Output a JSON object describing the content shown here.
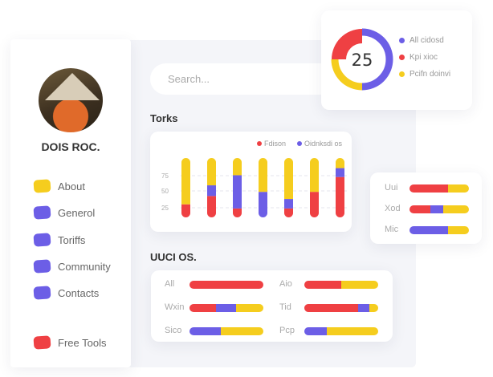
{
  "colors": {
    "red": "#ef4043",
    "purple": "#6c5ee6",
    "yellow": "#f5cd1e"
  },
  "profile": {
    "name": "DOIS ROC."
  },
  "sidebar": {
    "items": [
      {
        "label": "About",
        "color": "yellow"
      },
      {
        "label": "Generol",
        "color": "purple"
      },
      {
        "label": "Toriffs",
        "color": "purple"
      },
      {
        "label": "Community",
        "color": "purple"
      },
      {
        "label": "Contacts",
        "color": "purple"
      },
      {
        "label": "Free Tools",
        "color": "red"
      }
    ]
  },
  "search": {
    "placeholder": "Search..."
  },
  "donut": {
    "center_value": "25",
    "legend": [
      {
        "label": "All cidosd",
        "color": "purple",
        "value": 50
      },
      {
        "label": "Kpi xioc",
        "color": "red",
        "value": 25
      },
      {
        "label": "Pcifn doinvi",
        "color": "yellow",
        "value": 25
      }
    ]
  },
  "torks": {
    "title": "Torks"
  },
  "chart_data": {
    "type": "bar",
    "stacked": true,
    "ylim": [
      0,
      100
    ],
    "yticks": [
      "75",
      "50",
      "25"
    ],
    "grid": true,
    "legend_position": "top-right",
    "series_legend": [
      {
        "name": "Fdison",
        "color": "red"
      },
      {
        "name": "Oidnksdi os",
        "color": "purple"
      }
    ],
    "bars": [
      {
        "red": 22,
        "purple": 0,
        "yellow": 78
      },
      {
        "red": 36,
        "purple": 18,
        "yellow": 46
      },
      {
        "red": 15,
        "purple": 56,
        "yellow": 29
      },
      {
        "red": 0,
        "purple": 43,
        "yellow": 57
      },
      {
        "red": 15,
        "purple": 16,
        "yellow": 69
      },
      {
        "red": 43,
        "purple": 0,
        "yellow": 57
      },
      {
        "red": 68,
        "purple": 15,
        "yellow": 17
      }
    ]
  },
  "side_bars": [
    {
      "label": "Uui",
      "red": 65,
      "purple": 0,
      "yellow": 35
    },
    {
      "label": "Xod",
      "red": 35,
      "purple": 22,
      "yellow": 43
    },
    {
      "label": "Mic",
      "red": 0,
      "purple": 65,
      "yellow": 35
    }
  ],
  "uuci": {
    "title": "UUCI OS.",
    "rows": [
      {
        "label": "All",
        "red": 100,
        "purple": 0,
        "yellow": 0
      },
      {
        "label": "Aio",
        "red": 50,
        "purple": 0,
        "yellow": 50
      },
      {
        "label": "Wxin",
        "red": 36,
        "purple": 27,
        "yellow": 37
      },
      {
        "label": "Tid",
        "red": 73,
        "purple": 15,
        "yellow": 12
      },
      {
        "label": "Sico",
        "red": 0,
        "purple": 42,
        "yellow": 58
      },
      {
        "label": "Pcp",
        "red": 0,
        "purple": 30,
        "yellow": 70
      }
    ]
  }
}
